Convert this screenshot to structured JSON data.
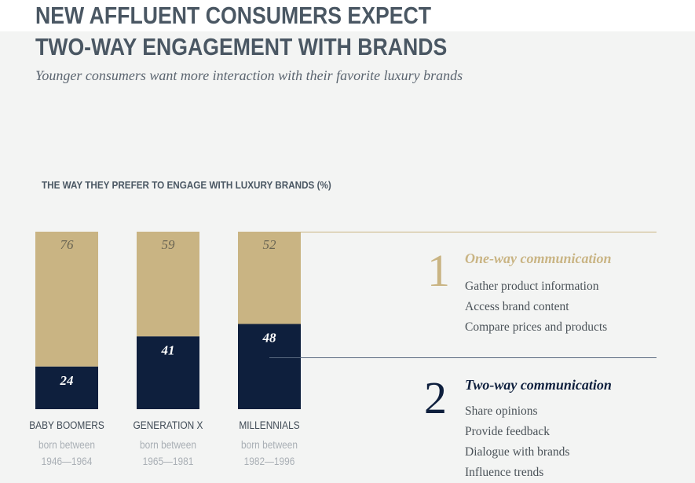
{
  "headline": {
    "line1": "NEW AFFLUENT CONSUMERS EXPECT",
    "line2": "TWO-WAY ENGAGEMENT WITH BRANDS"
  },
  "subtitle": "Younger consumers want more interaction with their favorite luxury brands",
  "colors": {
    "one_way": "#c9b483",
    "two_way": "#0e1f3d",
    "headline": "#4a5763"
  },
  "chart_data": {
    "type": "bar",
    "stacked": true,
    "title": "THE WAY THEY PREFER TO ENGAGE WITH LUXURY BRANDS (%)",
    "categories": [
      "BABY BOOMERS",
      "GENERATION X",
      "MILLENNIALS"
    ],
    "category_subtitles": [
      [
        "born between",
        "1946—1964"
      ],
      [
        "born between",
        "1965—1981"
      ],
      [
        "born between",
        "1982—1996"
      ]
    ],
    "series": [
      {
        "name": "Two-way communication",
        "values": [
          24,
          41,
          48
        ],
        "labels": [
          "24",
          "41",
          "48"
        ]
      },
      {
        "name": "One-way communication",
        "values": [
          76,
          59,
          52
        ],
        "labels": [
          "76",
          "59",
          "52"
        ]
      }
    ],
    "ylim": [
      0,
      100
    ]
  },
  "legend": {
    "one_way": {
      "number": "1",
      "title": "One-way communication",
      "items": [
        "Gather product information",
        "Access brand content",
        "Compare prices and products"
      ]
    },
    "two_way": {
      "number": "2",
      "title": "Two-way communication",
      "items": [
        "Share opinions",
        "Provide feedback",
        "Dialogue with brands",
        "Influence trends"
      ]
    }
  }
}
